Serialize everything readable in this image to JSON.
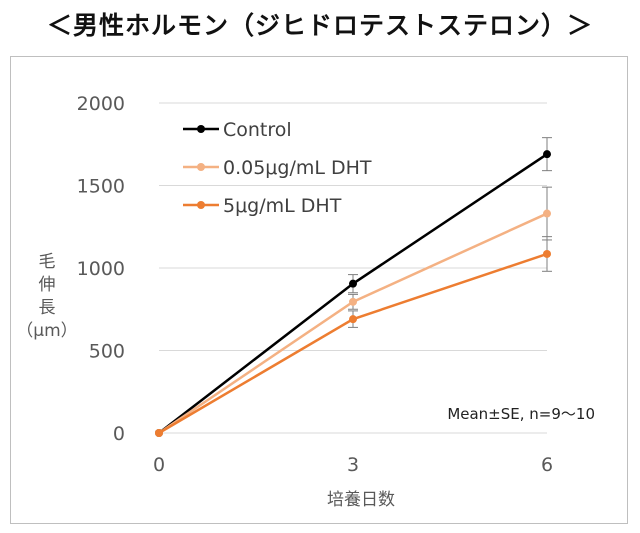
{
  "page_title": "＜男性ホルモン（ジヒドロテストステロン）＞",
  "chart_data": {
    "type": "line",
    "x": [
      0,
      3,
      6
    ],
    "xlabel": "培養日数",
    "ylabel_lines": [
      "毛",
      "伸",
      "長",
      "（μm）"
    ],
    "xlim": [
      0,
      6
    ],
    "ylim": [
      0,
      2000
    ],
    "x_ticks": [
      0,
      3,
      6
    ],
    "y_ticks": [
      0,
      500,
      1000,
      1500,
      2000
    ],
    "grid": "horizontal",
    "legend_position": "top-left",
    "annotation": "Mean±SE, n=9～10",
    "series": [
      {
        "name": "Control",
        "color": "#000000",
        "values": [
          0,
          905,
          1690
        ],
        "errors": [
          0,
          55,
          100
        ]
      },
      {
        "name": "0.05μg/mL DHT",
        "color": "#f4b183",
        "values": [
          0,
          795,
          1330
        ],
        "errors": [
          0,
          45,
          160
        ]
      },
      {
        "name": "5μg/mL DHT",
        "color": "#ed7d31",
        "values": [
          0,
          690,
          1085
        ],
        "errors": [
          0,
          50,
          105
        ]
      }
    ]
  }
}
